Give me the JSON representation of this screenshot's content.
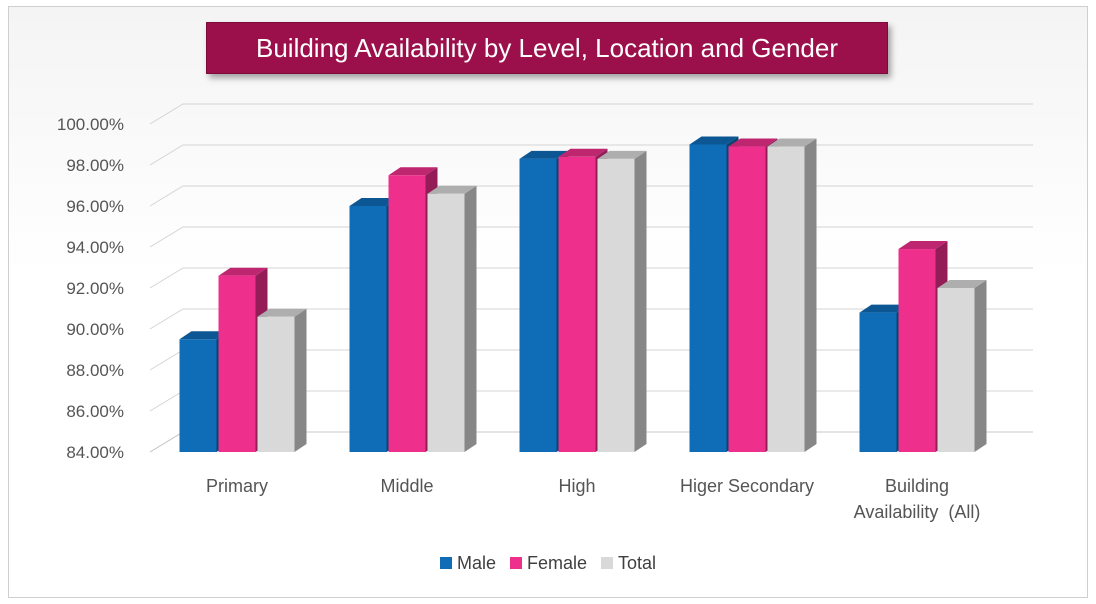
{
  "chart_data": {
    "type": "bar",
    "title": "Building Availability by Level, Location and Gender",
    "categories": [
      "Primary",
      "Middle",
      "High",
      "Higer Secondary",
      "Building Availability  (All)"
    ],
    "category_lines": [
      [
        "Primary"
      ],
      [
        "Middle"
      ],
      [
        "High"
      ],
      [
        "Higer Secondary"
      ],
      [
        "Building",
        "Availability  (All)"
      ]
    ],
    "series": [
      {
        "name": "Male",
        "color": "#0f6db8",
        "values": [
          89.5,
          96.0,
          98.3,
          99.0,
          90.8
        ]
      },
      {
        "name": "Female",
        "color": "#ee2f8c",
        "values": [
          92.6,
          97.5,
          98.4,
          98.9,
          93.9
        ]
      },
      {
        "name": "Total",
        "color": "#d9d9d9",
        "values": [
          90.6,
          96.6,
          98.3,
          98.9,
          92.0
        ]
      }
    ],
    "yticks": [
      "84.00%",
      "86.00%",
      "88.00%",
      "90.00%",
      "92.00%",
      "94.00%",
      "96.00%",
      "98.00%",
      "100.00%"
    ],
    "ylim": [
      84,
      100
    ],
    "grid": true,
    "legend_position": "bottom",
    "style": "3d-clustered-column"
  }
}
